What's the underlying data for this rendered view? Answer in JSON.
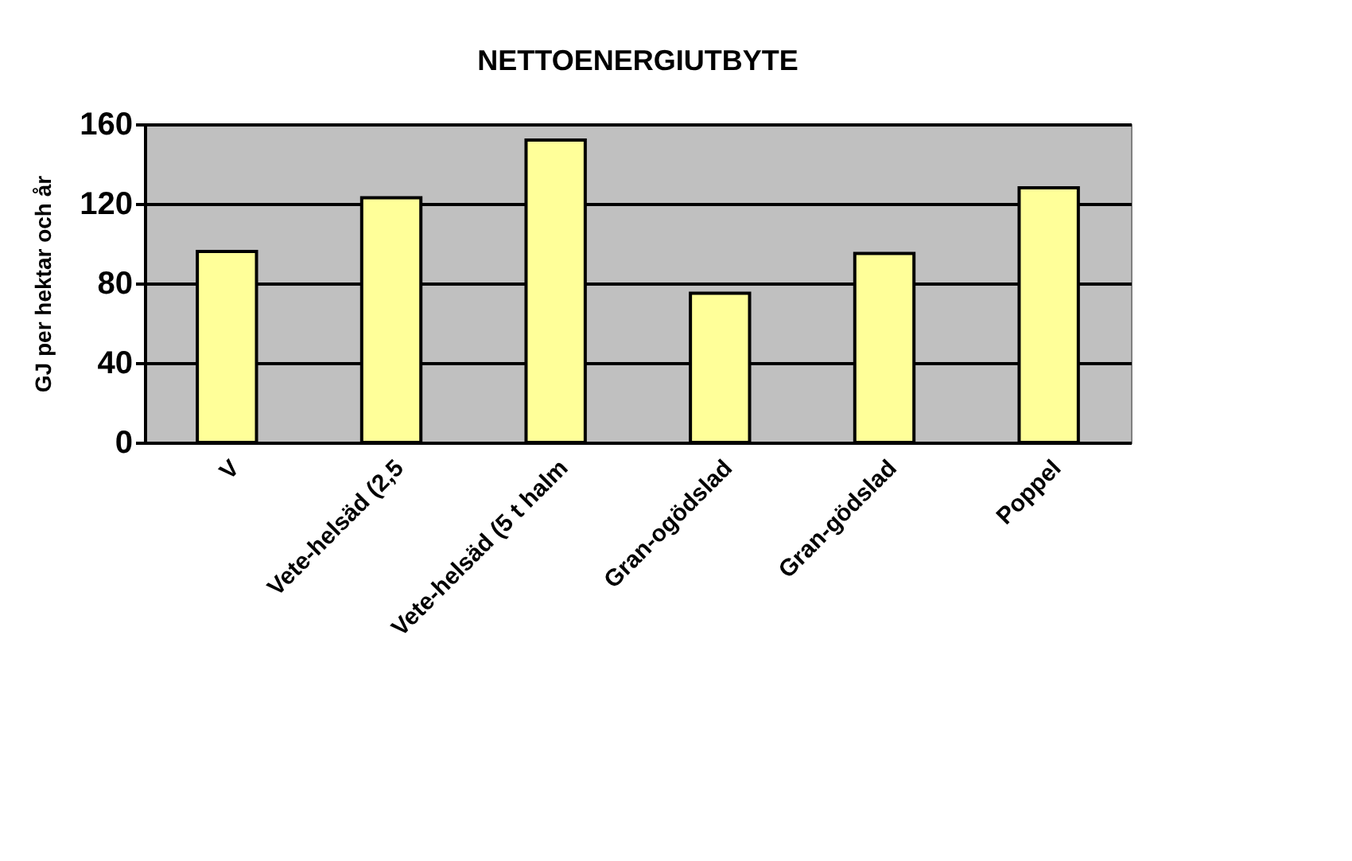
{
  "chart_data": {
    "type": "bar",
    "title": "NETTOENERGIUTBYTE",
    "ylabel": "GJ per hektar och år",
    "categories": [
      "V",
      "Vete-helsäd (2,5",
      "Vete-helsäd (5 t halm",
      "Gran-ogödslad",
      "Gran-gödslad",
      "Poppel"
    ],
    "values": [
      96,
      123,
      152,
      75,
      95,
      128
    ],
    "color": "#ffff99",
    "ylim": [
      0,
      160
    ],
    "yticks": [
      0,
      40,
      80,
      120,
      160
    ],
    "grid": "y"
  }
}
